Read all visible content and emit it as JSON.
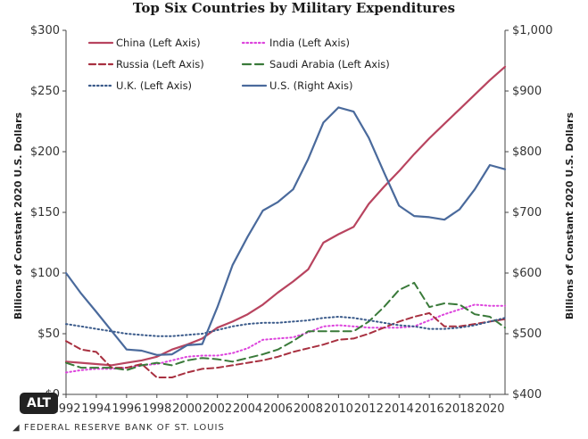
{
  "title": "Top Six Countries by Military Expenditures",
  "source": "FEDERAL RESERVE BANK OF ST. LOUIS",
  "alt_badge": "ALT",
  "chart_data": {
    "type": "line",
    "title": "Top Six Countries by Military Expenditures",
    "ylabel": "Billions of Constant 2020 U.S. Dollars",
    "ylabel_right": "Billions of Constant 2020 U.S. Dollars",
    "ylim": [
      0,
      300
    ],
    "ylim_right": [
      400,
      1000
    ],
    "xlim": [
      1992,
      2021
    ],
    "x_ticks": [
      1992,
      1994,
      1996,
      1998,
      2000,
      2002,
      2004,
      2006,
      2008,
      2010,
      2012,
      2014,
      2016,
      2018,
      2020
    ],
    "x_tick_labels": [
      "1992",
      "1994",
      "1996",
      "1998",
      "2000",
      "2002",
      "2004",
      "2006",
      "2008",
      "2010",
      "2012",
      "2014",
      "2016",
      "2018",
      "2020"
    ],
    "y_ticks_left": [
      0,
      50,
      100,
      150,
      200,
      250,
      300
    ],
    "y_tick_labels_left": [
      "$0",
      "$50",
      "$100",
      "$150",
      "$200",
      "$250",
      "$300"
    ],
    "y_ticks_right": [
      400,
      500,
      600,
      700,
      800,
      900,
      1000
    ],
    "y_tick_labels_right": [
      "$400",
      "$500",
      "$600",
      "$700",
      "$800",
      "$900",
      "$1,000"
    ],
    "legend_position": "top",
    "grid": false,
    "x": [
      1992,
      1993,
      1994,
      1995,
      1996,
      1997,
      1998,
      1999,
      2000,
      2001,
      2002,
      2003,
      2004,
      2005,
      2006,
      2007,
      2008,
      2009,
      2010,
      2011,
      2012,
      2013,
      2014,
      2015,
      2016,
      2017,
      2018,
      2019,
      2020,
      2021
    ],
    "series": [
      {
        "name": "China (Left Axis)",
        "axis": "left",
        "color": "#b8445f",
        "dash": "solid",
        "values": [
          27,
          26,
          25,
          24,
          26,
          28,
          31,
          37,
          41,
          46,
          55,
          60,
          66,
          74,
          84,
          93,
          103,
          125,
          132,
          138,
          157,
          171,
          184,
          198,
          211,
          223,
          235,
          247,
          259,
          270
        ]
      },
      {
        "name": "India (Left Axis)",
        "axis": "left",
        "color": "#dd44dd",
        "dash": "dot",
        "values": [
          18,
          20,
          21,
          21,
          22,
          24,
          25,
          28,
          31,
          32,
          32,
          34,
          38,
          45,
          46,
          47,
          51,
          56,
          57,
          56,
          55,
          55,
          55,
          56,
          61,
          66,
          70,
          74,
          73,
          73
        ]
      },
      {
        "name": "Russia (Left Axis)",
        "axis": "left",
        "color": "#a83040",
        "dash": "dash",
        "values": [
          44,
          37,
          35,
          22,
          22,
          25,
          14,
          14,
          18,
          21,
          22,
          24,
          26,
          28,
          31,
          35,
          38,
          41,
          45,
          46,
          50,
          55,
          60,
          64,
          67,
          56,
          56,
          58,
          60,
          62
        ]
      },
      {
        "name": "Saudi Arabia (Left Axis)",
        "axis": "left",
        "color": "#3a7a3a",
        "dash": "longdash",
        "values": [
          26,
          22,
          22,
          22,
          20,
          24,
          26,
          24,
          28,
          30,
          29,
          27,
          30,
          33,
          37,
          44,
          52,
          52,
          52,
          52,
          60,
          72,
          86,
          92,
          72,
          75,
          74,
          66,
          64,
          55
        ]
      },
      {
        "name": "U.K. (Left Axis)",
        "axis": "left",
        "color": "#3a5a8a",
        "dash": "dot",
        "values": [
          58,
          56,
          54,
          52,
          50,
          49,
          48,
          48,
          49,
          50,
          53,
          56,
          58,
          59,
          59,
          60,
          61,
          63,
          64,
          63,
          61,
          59,
          57,
          56,
          54,
          54,
          55,
          57,
          60,
          63
        ]
      },
      {
        "name": "U.S. (Right Axis)",
        "axis": "right",
        "color": "#4a6a9c",
        "dash": "solid",
        "values": [
          600,
          566,
          536,
          505,
          474,
          472,
          465,
          466,
          481,
          483,
          544,
          613,
          660,
          703,
          717,
          738,
          788,
          848,
          873,
          866,
          823,
          766,
          711,
          694,
          692,
          688,
          705,
          738,
          778,
          771
        ]
      }
    ]
  }
}
